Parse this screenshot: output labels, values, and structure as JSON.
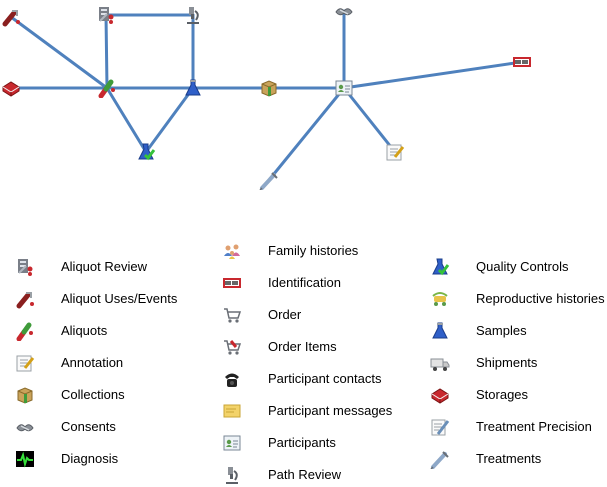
{
  "diagram": {
    "nodes": [
      {
        "id": "aliquot-uses-events",
        "icon": "aliquot-uses-icon"
      },
      {
        "id": "aliquot-review",
        "icon": "aliquot-review-icon"
      },
      {
        "id": "path-review",
        "icon": "path-review-icon"
      },
      {
        "id": "consents",
        "icon": "consents-icon"
      },
      {
        "id": "storages",
        "icon": "storages-icon"
      },
      {
        "id": "aliquots",
        "icon": "aliquots-icon"
      },
      {
        "id": "samples",
        "icon": "samples-icon"
      },
      {
        "id": "collections",
        "icon": "collections-icon"
      },
      {
        "id": "participants",
        "icon": "participants-icon"
      },
      {
        "id": "identification",
        "icon": "identification-icon"
      },
      {
        "id": "quality-controls",
        "icon": "quality-controls-icon"
      },
      {
        "id": "annotation",
        "icon": "annotation-icon"
      },
      {
        "id": "treatments",
        "icon": "treatments-icon"
      }
    ],
    "edges": [
      [
        "aliquot-uses-events",
        "aliquots"
      ],
      [
        "storages",
        "aliquots"
      ],
      [
        "aliquot-review",
        "aliquots"
      ],
      [
        "aliquot-review",
        "path-review"
      ],
      [
        "path-review",
        "samples"
      ],
      [
        "aliquots",
        "samples"
      ],
      [
        "aliquots",
        "quality-controls"
      ],
      [
        "samples",
        "quality-controls"
      ],
      [
        "samples",
        "collections"
      ],
      [
        "collections",
        "participants"
      ],
      [
        "consents",
        "participants"
      ],
      [
        "participants",
        "identification"
      ],
      [
        "participants",
        "annotation"
      ],
      [
        "participants",
        "treatments"
      ]
    ]
  },
  "legend": {
    "columns": [
      [
        {
          "label": "Aliquot Review",
          "icon": "aliquot-review-icon"
        },
        {
          "label": "Aliquot Uses/Events",
          "icon": "aliquot-uses-icon"
        },
        {
          "label": "Aliquots",
          "icon": "aliquots-icon"
        },
        {
          "label": "Annotation",
          "icon": "annotation-icon"
        },
        {
          "label": "Collections",
          "icon": "collections-icon"
        },
        {
          "label": "Consents",
          "icon": "consents-icon"
        },
        {
          "label": "Diagnosis",
          "icon": "diagnosis-icon"
        }
      ],
      [
        {
          "label": "Family histories",
          "icon": "family-histories-icon"
        },
        {
          "label": "Identification",
          "icon": "identification-icon"
        },
        {
          "label": "Order",
          "icon": "order-icon"
        },
        {
          "label": "Order Items",
          "icon": "order-items-icon"
        },
        {
          "label": "Participant contacts",
          "icon": "participant-contacts-icon"
        },
        {
          "label": "Participant messages",
          "icon": "participant-messages-icon"
        },
        {
          "label": "Participants",
          "icon": "participants-icon"
        },
        {
          "label": "Path Review",
          "icon": "path-review-icon"
        }
      ],
      [
        {
          "label": "Quality Controls",
          "icon": "quality-controls-icon"
        },
        {
          "label": "Reproductive histories",
          "icon": "reproductive-histories-icon"
        },
        {
          "label": "Samples",
          "icon": "samples-icon"
        },
        {
          "label": "Shipments",
          "icon": "shipments-icon"
        },
        {
          "label": "Storages",
          "icon": "storages-icon"
        },
        {
          "label": "Treatment Precision",
          "icon": "treatment-precision-icon"
        },
        {
          "label": "Treatments",
          "icon": "treatments-icon"
        }
      ]
    ]
  },
  "colors": {
    "edge": "#4f81bd"
  }
}
